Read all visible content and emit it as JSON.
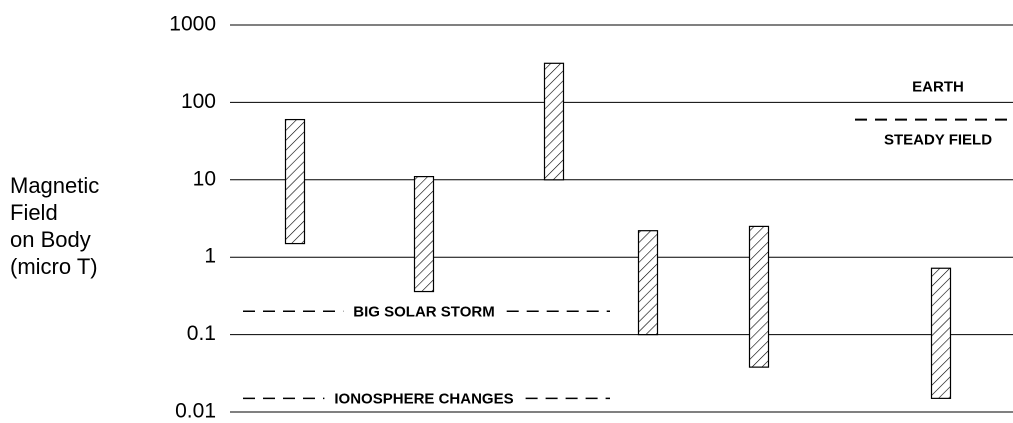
{
  "chart_data": {
    "type": "floating_bar",
    "y_label_lines": [
      "Magnetic",
      "Field",
      "on Body",
      "(micro T)"
    ],
    "categories": [
      null,
      null,
      null,
      null,
      null,
      null
    ],
    "low": [
      1.5,
      0.36,
      10,
      0.1,
      0.038,
      0.015
    ],
    "high": [
      60,
      11,
      320,
      2.2,
      2.5,
      0.72
    ],
    "color": "#000000",
    "hatch": true,
    "ylim": [
      0.01,
      1000
    ],
    "yticks": [
      0.01,
      0.1,
      1,
      10,
      100,
      1000
    ],
    "log_y": true,
    "grid": true,
    "reference_lines": [
      {
        "labels": [
          "EARTH",
          "STEADY FIELD"
        ],
        "value": 60
      },
      {
        "labels": [
          "BIG SOLAR STORM"
        ],
        "value": 0.2
      },
      {
        "labels": [
          "IONOSPHERE CHANGES"
        ],
        "value": 0.015
      }
    ]
  }
}
